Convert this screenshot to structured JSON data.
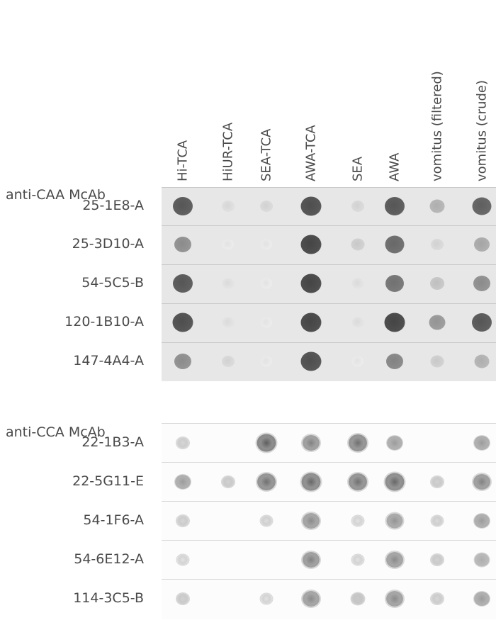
{
  "columns": [
    "Hi-TCA",
    "HiUR-TCA",
    "SEA-TCA",
    "AWA-TCA",
    "SEA",
    "AWA",
    "vomitus (filtered)",
    "vomitus (crude)"
  ],
  "groups": [
    {
      "label": "anti-CAA McAb",
      "strip_color": "#e7e7e7",
      "rows": [
        {
          "label": "25-1E8-A",
          "intensity": [
            0.85,
            0.12,
            0.15,
            0.9,
            0.15,
            0.85,
            0.35,
            0.8
          ]
        },
        {
          "label": "25-3D10-A",
          "intensity": [
            0.55,
            0.05,
            0.05,
            0.95,
            0.2,
            0.75,
            0.15,
            0.4
          ]
        },
        {
          "label": "54-5C5-B",
          "intensity": [
            0.85,
            0.1,
            0.05,
            0.95,
            0.1,
            0.7,
            0.25,
            0.55
          ]
        },
        {
          "label": "120-1B10-A",
          "intensity": [
            0.9,
            0.1,
            0.05,
            0.95,
            0.1,
            0.95,
            0.5,
            0.85
          ]
        },
        {
          "label": "147-4A4-A",
          "intensity": [
            0.55,
            0.15,
            0.05,
            0.9,
            0.05,
            0.6,
            0.2,
            0.35
          ]
        }
      ]
    },
    {
      "label": "anti-CCA McAb",
      "strip_color": "#fcfcfc",
      "rows": [
        {
          "label": "22-1B3-A",
          "intensity": [
            0.12,
            0.0,
            0.8,
            0.6,
            0.7,
            0.45,
            0.0,
            0.45
          ]
        },
        {
          "label": "22-5G11-E",
          "intensity": [
            0.45,
            0.15,
            0.7,
            0.75,
            0.7,
            0.75,
            0.15,
            0.6
          ]
        },
        {
          "label": "54-1F6-A",
          "intensity": [
            0.12,
            0.0,
            0.08,
            0.55,
            0.05,
            0.5,
            0.1,
            0.45
          ]
        },
        {
          "label": "54-6E12-A",
          "intensity": [
            0.05,
            0.0,
            0.0,
            0.6,
            0.05,
            0.55,
            0.15,
            0.35
          ]
        },
        {
          "label": "114-3C5-B",
          "intensity": [
            0.15,
            0.0,
            0.05,
            0.55,
            0.2,
            0.55,
            0.12,
            0.45
          ]
        }
      ]
    }
  ]
}
